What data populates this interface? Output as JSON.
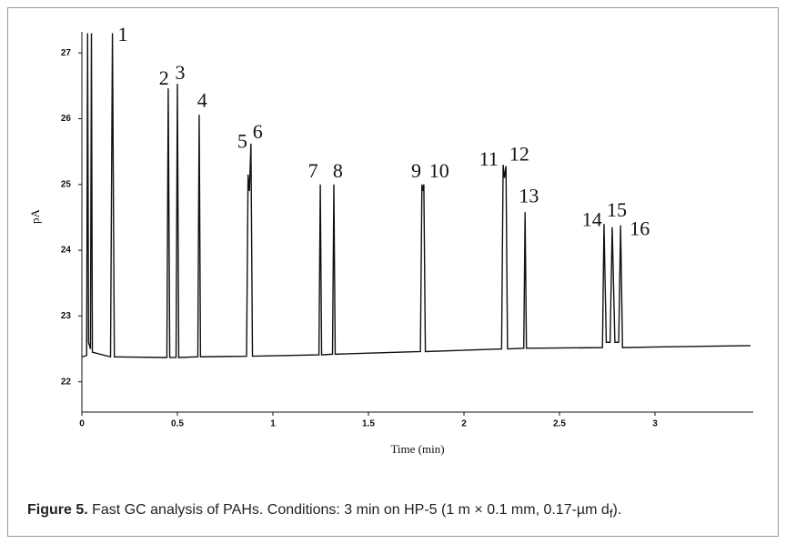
{
  "chart_data": {
    "type": "line",
    "xlabel": "Time (min)",
    "ylabel": "pA",
    "xlim": [
      0,
      3.5
    ],
    "ylim": [
      21.54,
      27.32
    ],
    "xticks": [
      0,
      0.5,
      1,
      1.5,
      2,
      2.5,
      3
    ],
    "yticks": [
      22,
      23,
      24,
      25,
      26,
      27
    ],
    "color": "#111111",
    "x": [
      0,
      0.025,
      0.03,
      0.035,
      0.045,
      0.05,
      0.055,
      0.15,
      0.16,
      0.17,
      0.445,
      0.452,
      0.46,
      0.493,
      0.5,
      0.507,
      0.607,
      0.614,
      0.621,
      0.862,
      0.87,
      0.877,
      0.885,
      0.893,
      1.241,
      1.248,
      1.255,
      1.312,
      1.319,
      1.326,
      1.772,
      1.78,
      1.785,
      1.79,
      1.798,
      2.197,
      2.205,
      2.212,
      2.22,
      2.228,
      2.313,
      2.32,
      2.327,
      2.725,
      2.733,
      2.745,
      2.765,
      2.776,
      2.79,
      2.81,
      2.82,
      2.83,
      3,
      3.5
    ],
    "values": [
      22.38,
      22.4,
      27.3,
      22.6,
      22.5,
      27.3,
      22.45,
      22.38,
      27.3,
      22.38,
      22.37,
      26.46,
      22.37,
      22.37,
      26.53,
      22.37,
      22.38,
      26.06,
      22.38,
      22.39,
      25.15,
      24.9,
      25.62,
      22.39,
      22.41,
      25.0,
      22.41,
      22.42,
      25.0,
      22.42,
      22.46,
      25.0,
      24.9,
      25.0,
      22.46,
      22.5,
      25.3,
      25.1,
      25.28,
      22.5,
      22.51,
      24.58,
      22.51,
      22.52,
      24.4,
      22.6,
      22.6,
      24.35,
      22.6,
      22.6,
      24.38,
      22.52,
      22.53,
      22.55
    ],
    "annotations": [
      {
        "text": "1",
        "x": 0.214,
        "y": 27.25
      },
      {
        "text": "2",
        "x": 0.43,
        "y": 26.59
      },
      {
        "text": "3",
        "x": 0.514,
        "y": 26.67
      },
      {
        "text": "4",
        "x": 0.63,
        "y": 26.25
      },
      {
        "text": "5",
        "x": 0.84,
        "y": 25.63
      },
      {
        "text": "6",
        "x": 0.92,
        "y": 25.77
      },
      {
        "text": "7",
        "x": 1.21,
        "y": 25.18
      },
      {
        "text": "8",
        "x": 1.34,
        "y": 25.18
      },
      {
        "text": "9",
        "x": 1.75,
        "y": 25.18
      },
      {
        "text": "10",
        "x": 1.87,
        "y": 25.18
      },
      {
        "text": "11",
        "x": 2.13,
        "y": 25.36
      },
      {
        "text": "12",
        "x": 2.29,
        "y": 25.43
      },
      {
        "text": "13",
        "x": 2.34,
        "y": 24.8
      },
      {
        "text": "14",
        "x": 2.67,
        "y": 24.44
      },
      {
        "text": "15",
        "x": 2.8,
        "y": 24.58
      },
      {
        "text": "16",
        "x": 2.92,
        "y": 24.3
      }
    ]
  },
  "caption": {
    "label": "Figure 5.",
    "text": " Fast GC analysis of PAHs. Conditions: 3 min on HP-5 (1 m × 0.1 mm, 0.17-µm d",
    "subscript": "f",
    "end": ")."
  }
}
